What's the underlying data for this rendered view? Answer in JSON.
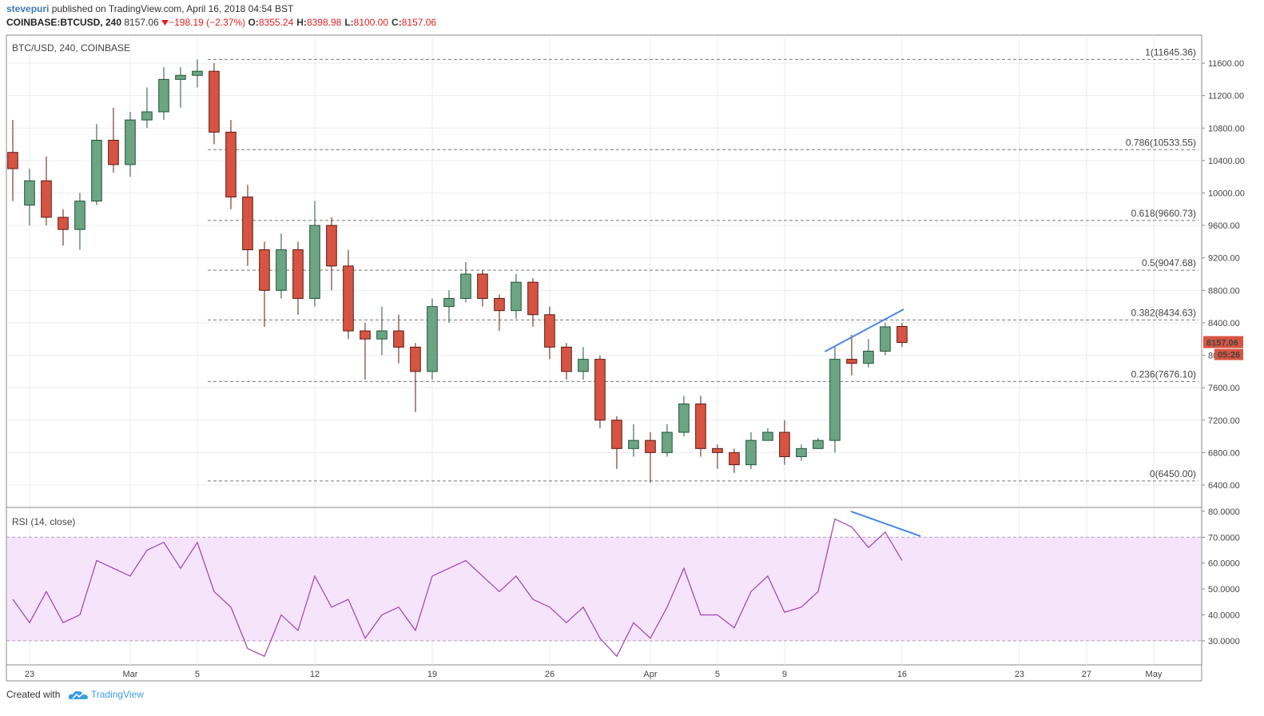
{
  "header": {
    "author": "stevepuri",
    "byline": "published on TradingView.com, April 16, 2018 04:54 BST"
  },
  "quote": {
    "symbol": "COINBASE:BTCUSD, 240",
    "last": "8157.06",
    "change": "−198.19 (−2.37%)",
    "ohlc": [
      {
        "label": "O:",
        "value": "8355.24"
      },
      {
        "label": "H:",
        "value": "8398.98"
      },
      {
        "label": "L:",
        "value": "8100.00"
      },
      {
        "label": "C:",
        "value": "8157.06"
      }
    ]
  },
  "footer": {
    "created": "Created with",
    "brand": "TradingView"
  },
  "chart_data": [
    {
      "type": "candlestick",
      "title": "BTC/USD, 240, COINBASE",
      "x": [
        -1,
        0,
        1,
        2,
        3,
        4,
        5,
        6,
        7,
        8,
        9,
        10,
        11,
        12,
        13,
        14,
        15,
        16,
        17,
        18,
        19,
        20,
        21,
        22,
        23,
        24,
        25,
        26,
        27,
        28,
        29,
        30,
        31,
        32,
        33,
        34,
        35,
        36,
        37,
        38,
        39,
        40,
        41,
        42,
        43,
        44,
        45,
        46,
        47,
        48,
        49,
        50,
        51,
        52
      ],
      "open": [
        10500,
        9850,
        10150,
        9700,
        9550,
        9900,
        10650,
        10350,
        10900,
        11000,
        11400,
        11450,
        11500,
        10750,
        9950,
        9300,
        8800,
        9300,
        8700,
        9600,
        9100,
        8300,
        8200,
        8300,
        8100,
        7800,
        8600,
        8700,
        9000,
        8700,
        8550,
        8900,
        8500,
        8100,
        7800,
        7950,
        7200,
        6850,
        6950,
        6800,
        7050,
        7400,
        6850,
        6800,
        6650,
        6950,
        7050,
        6750,
        6850,
        6950,
        7950,
        7900,
        8050,
        8355.24
      ],
      "high": [
        10900,
        10300,
        10450,
        9800,
        10000,
        10850,
        11050,
        11000,
        11300,
        11550,
        11550,
        11645,
        11600,
        10900,
        10100,
        9400,
        9500,
        9400,
        9900,
        9700,
        9300,
        8400,
        8600,
        8500,
        8150,
        8700,
        8800,
        9150,
        9050,
        8750,
        9000,
        8950,
        8600,
        8150,
        8100,
        8000,
        7250,
        7150,
        7050,
        7150,
        7500,
        7500,
        6900,
        6850,
        7050,
        7100,
        7200,
        6900,
        6980,
        8100,
        8250,
        8200,
        8400,
        8398.98
      ],
      "low": [
        9900,
        9600,
        9600,
        9350,
        9300,
        9850,
        10250,
        10200,
        10800,
        10900,
        11050,
        11300,
        10600,
        9800,
        9100,
        8350,
        8700,
        8500,
        8600,
        8800,
        8200,
        7700,
        8000,
        7900,
        7300,
        7700,
        8400,
        8650,
        8600,
        8300,
        8450,
        8350,
        7950,
        7700,
        7700,
        7100,
        6600,
        6750,
        6430,
        6750,
        7000,
        6750,
        6600,
        6550,
        6600,
        6950,
        6650,
        6700,
        6850,
        6800,
        7750,
        7850,
        8000,
        8100
      ],
      "close": [
        10300,
        10150,
        9700,
        9550,
        9900,
        10650,
        10350,
        10900,
        11000,
        11400,
        11450,
        11500,
        10750,
        9950,
        9300,
        8800,
        9300,
        8700,
        9600,
        9100,
        8300,
        8200,
        8300,
        8100,
        7800,
        8600,
        8700,
        9000,
        8700,
        8550,
        8900,
        8500,
        8100,
        7800,
        7950,
        7200,
        6850,
        6950,
        6800,
        7050,
        7400,
        6850,
        6800,
        6650,
        6950,
        7050,
        6750,
        6850,
        6950,
        7950,
        7900,
        8050,
        8350,
        8157.06
      ],
      "up_color": "#6ba583",
      "down_color": "#d75442",
      "xlim": [
        -1.38,
        69.86
      ],
      "ylim": [
        6134,
        11945
      ],
      "yticks": [
        {
          "value": 6400,
          "label": "6400.00"
        },
        {
          "value": 6800,
          "label": "6800.00"
        },
        {
          "value": 7200,
          "label": "7200.00"
        },
        {
          "value": 7600,
          "label": "7600.00"
        },
        {
          "value": 8000,
          "label": "8000.00"
        },
        {
          "value": 8400,
          "label": "8400.00"
        },
        {
          "value": 8800,
          "label": "8800.00"
        },
        {
          "value": 9200,
          "label": "9200.00"
        },
        {
          "value": 9600,
          "label": "9600.00"
        },
        {
          "value": 10000,
          "label": "10000.00"
        },
        {
          "value": 10400,
          "label": "10400.00"
        },
        {
          "value": 10800,
          "label": "10800.00"
        },
        {
          "value": 11200,
          "label": "11200.00"
        },
        {
          "value": 11600,
          "label": "11600.00"
        }
      ],
      "fib_levels": [
        {
          "value": 11645.36,
          "label": "1(11645.36)"
        },
        {
          "value": 10533.55,
          "label": "0.786(10533.55)"
        },
        {
          "value": 9660.73,
          "label": "0.618(9660.73)"
        },
        {
          "value": 9047.68,
          "label": "0.5(9047.68)"
        },
        {
          "value": 8434.63,
          "label": "0.382(8434.63)"
        },
        {
          "value": 7676.1,
          "label": "0.236(7676.10)"
        },
        {
          "value": 6450.0,
          "label": "0(6450.00)"
        }
      ],
      "trendline": {
        "x": [
          47.4,
          52.1
        ],
        "y": [
          8045,
          8567
        ],
        "color": "#4a86e8"
      },
      "last_price_label": "8157.06",
      "countdown_label": "05:26",
      "grid": true
    },
    {
      "type": "line",
      "title": "RSI (14, close)",
      "x": [
        -1,
        0,
        1,
        2,
        3,
        4,
        5,
        6,
        7,
        8,
        9,
        10,
        11,
        12,
        13,
        14,
        15,
        16,
        17,
        18,
        19,
        20,
        21,
        22,
        23,
        24,
        25,
        26,
        27,
        28,
        29,
        30,
        31,
        32,
        33,
        34,
        35,
        36,
        37,
        38,
        39,
        40,
        41,
        42,
        43,
        44,
        45,
        46,
        47,
        48,
        49,
        50,
        51,
        52
      ],
      "values": [
        46,
        37,
        49,
        37,
        40,
        61,
        58,
        55,
        65,
        68,
        58,
        68,
        49,
        43,
        27,
        24,
        40,
        34,
        55,
        43,
        46,
        31,
        40,
        43,
        34,
        55,
        58,
        61,
        55,
        49,
        55,
        46,
        43,
        37,
        43,
        31,
        24,
        37,
        31,
        43,
        58,
        40,
        40,
        35,
        49,
        55,
        41,
        43,
        49,
        77,
        74,
        66,
        72,
        61
      ],
      "color": "#a03fb5",
      "band": [
        30,
        70
      ],
      "band_color": "#f6e4fb",
      "xlim": [
        -1.38,
        69.86
      ],
      "ylim": [
        20.7,
        81.2
      ],
      "yticks": [
        {
          "value": 30,
          "label": "30.0000"
        },
        {
          "value": 40,
          "label": "40.0000"
        },
        {
          "value": 50,
          "label": "50.0000"
        },
        {
          "value": 60,
          "label": "60.0000"
        },
        {
          "value": 70,
          "label": "70.0000"
        },
        {
          "value": 80,
          "label": "80.0000"
        }
      ],
      "xticks": [
        {
          "value": 0,
          "label": "23"
        },
        {
          "value": 6,
          "label": "Mar"
        },
        {
          "value": 10,
          "label": "5"
        },
        {
          "value": 17,
          "label": "12"
        },
        {
          "value": 24,
          "label": "19"
        },
        {
          "value": 31,
          "label": "26"
        },
        {
          "value": 37,
          "label": "Apr"
        },
        {
          "value": 41,
          "label": "5"
        },
        {
          "value": 45,
          "label": "9"
        },
        {
          "value": 52,
          "label": "16"
        },
        {
          "value": 59,
          "label": "23"
        },
        {
          "value": 63,
          "label": "27"
        },
        {
          "value": 67,
          "label": "May"
        }
      ],
      "trendline": {
        "x": [
          48.95,
          53.1
        ],
        "y": [
          80,
          70.4
        ],
        "color": "#4a86e8"
      },
      "grid": true
    }
  ]
}
